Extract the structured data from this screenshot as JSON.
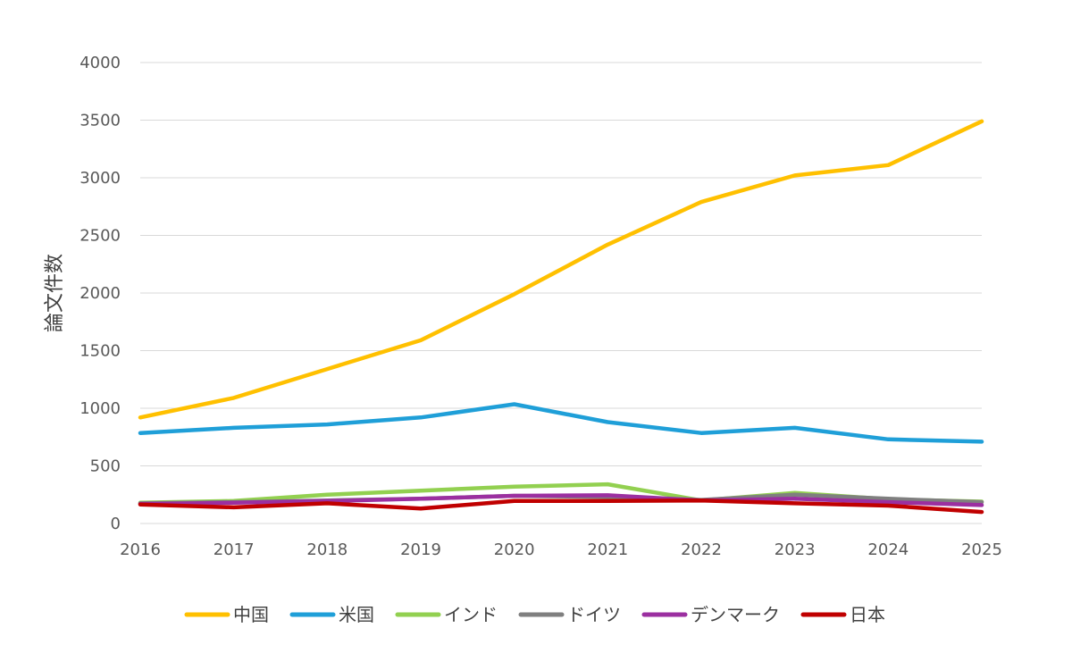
{
  "chart_data": {
    "type": "line",
    "title": "",
    "xlabel": "",
    "ylabel": "論文件数",
    "x": [
      "2016",
      "2017",
      "2018",
      "2019",
      "2020",
      "2021",
      "2022",
      "2023",
      "2024",
      "2025"
    ],
    "yticks": [
      "0",
      "500",
      "1000",
      "1500",
      "2000",
      "2500",
      "3000",
      "3500",
      "4000"
    ],
    "ylim": [
      0,
      4000
    ],
    "grid": true,
    "legend_position": "bottom",
    "series": [
      {
        "name": "中国",
        "color": "#FFC000",
        "values": [
          920,
          1090,
          1340,
          1590,
          1990,
          2420,
          2790,
          3020,
          3110,
          3490
        ]
      },
      {
        "name": "米国",
        "color": "#1F9FD8",
        "values": [
          785,
          830,
          860,
          920,
          1035,
          880,
          785,
          830,
          730,
          710
        ]
      },
      {
        "name": "インド",
        "color": "#92D050",
        "values": [
          180,
          195,
          250,
          285,
          320,
          340,
          200,
          265,
          210,
          190
        ]
      },
      {
        "name": "ドイツ",
        "color": "#7F7F7F",
        "values": [
          175,
          185,
          200,
          215,
          240,
          230,
          205,
          250,
          215,
          185
        ]
      },
      {
        "name": "デンマーク",
        "color": "#9B2FA0",
        "values": [
          170,
          180,
          195,
          215,
          240,
          245,
          200,
          215,
          185,
          160
        ]
      },
      {
        "name": "日本",
        "color": "#C00000",
        "values": [
          165,
          140,
          175,
          130,
          195,
          195,
          200,
          175,
          155,
          100
        ]
      }
    ]
  }
}
